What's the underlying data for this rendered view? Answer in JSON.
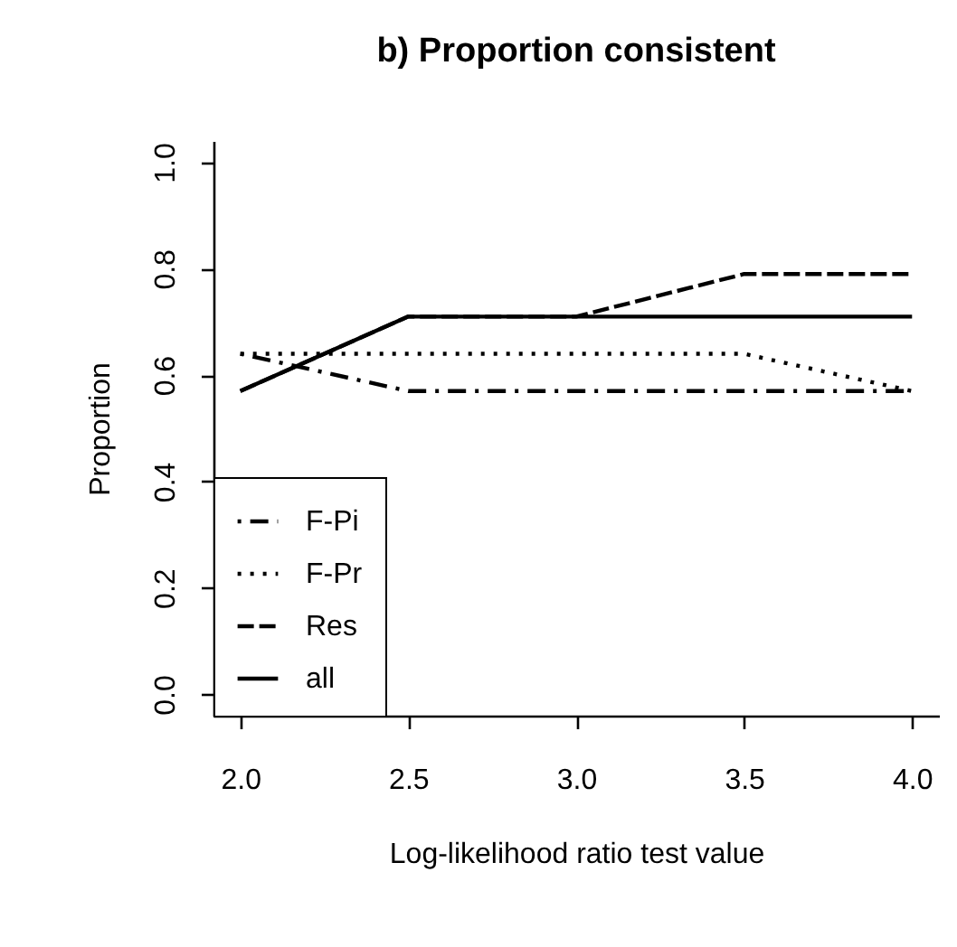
{
  "chart_data": {
    "type": "line",
    "title": "b) Proportion consistent",
    "xlabel": "Log-likelihood ratio test value",
    "ylabel": "Proportion",
    "x": [
      2.0,
      2.5,
      3.0,
      3.5,
      4.0
    ],
    "series": [
      {
        "name": "F-Pi",
        "color": "#000000",
        "line_style": "dashdot",
        "values": [
          0.64,
          0.57,
          0.57,
          0.57,
          0.57
        ]
      },
      {
        "name": "F-Pr",
        "color": "#000000",
        "line_style": "dotted",
        "values": [
          0.64,
          0.64,
          0.64,
          0.64,
          0.57
        ]
      },
      {
        "name": "Res",
        "color": "#000000",
        "line_style": "dashed",
        "values": [
          0.57,
          0.71,
          0.71,
          0.79,
          0.79
        ]
      },
      {
        "name": "all",
        "color": "#000000",
        "line_style": "solid",
        "values": [
          0.57,
          0.71,
          0.71,
          0.71,
          0.71
        ]
      }
    ],
    "xlim": [
      1.92,
      4.08
    ],
    "xticks": [
      {
        "value": 2.0,
        "label": "2.0"
      },
      {
        "value": 2.5,
        "label": "2.5"
      },
      {
        "value": 3.0,
        "label": "3.0"
      },
      {
        "value": 3.5,
        "label": "3.5"
      },
      {
        "value": 4.0,
        "label": "4.0"
      }
    ],
    "ylim": [
      -0.04,
      1.04
    ],
    "yticks": [
      {
        "value": 0.0,
        "label": "0.0"
      },
      {
        "value": 0.2,
        "label": "0.2"
      },
      {
        "value": 0.4,
        "label": "0.4"
      },
      {
        "value": 0.6,
        "label": "0.6"
      },
      {
        "value": 0.8,
        "label": "0.8"
      },
      {
        "value": 1.0,
        "label": "1.0"
      }
    ],
    "legend": "bottom left",
    "grid": false,
    "marker": "none"
  }
}
